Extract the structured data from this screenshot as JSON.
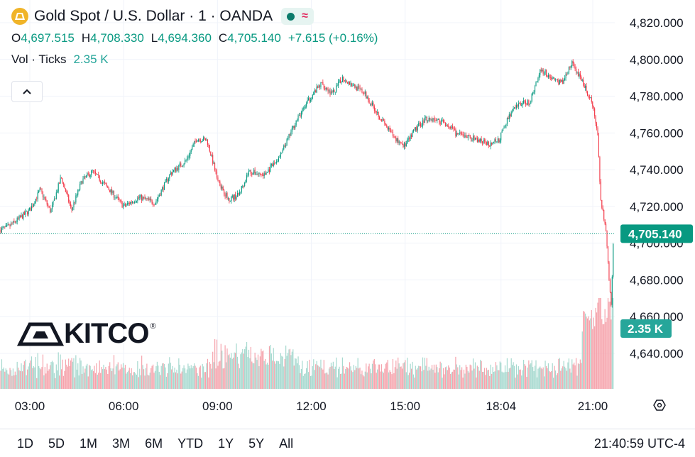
{
  "header": {
    "title": "Gold Spot / U.S. Dollar · 1 · OANDA",
    "status_wave": "≈",
    "ohlc": {
      "o_label": "O",
      "o": "4,697.515",
      "h_label": "H",
      "h": "4,708.330",
      "l_label": "L",
      "l": "4,694.360",
      "c_label": "C",
      "c": "4,705.140",
      "change": "+7.615 (+0.16%)"
    },
    "volume": {
      "label": "Vol · Ticks",
      "value": "2.35 K"
    }
  },
  "price_labels": {
    "last": "4,705.140",
    "volume_last": "2.35 K"
  },
  "ranges": [
    "1D",
    "5D",
    "1M",
    "3M",
    "6M",
    "YTD",
    "1Y",
    "5Y",
    "All"
  ],
  "clock": "21:40:59 UTC-4",
  "watermark": {
    "text": "KITCO",
    "reg": "®"
  },
  "colors": {
    "up": "#089981",
    "down": "#f23645",
    "vol_up": "#a6d9cf",
    "vol_down": "#f5a3ac",
    "last_price": "#089981",
    "text": "#131722",
    "grid": "#f0f3fa"
  },
  "chart_data": {
    "type": "candlestick",
    "symbol": "Gold Spot / U.S. Dollar",
    "interval": "1",
    "exchange": "OANDA",
    "y_axis_ticks": [
      "4,640.000",
      "4,660.000",
      "4,680.000",
      "4,700.000",
      "4,720.000",
      "4,740.000",
      "4,760.000",
      "4,780.000",
      "4,800.000",
      "4,820.000"
    ],
    "x_axis_ticks": [
      "03:00",
      "06:00",
      "09:00",
      "12:00",
      "15:00",
      "18:04",
      "21:00"
    ],
    "ylim": [
      4628,
      4828
    ],
    "last_price": 4705.14,
    "price_path": [
      {
        "t": "01:40",
        "p": 4690
      },
      {
        "t": "02:00",
        "p": 4707
      },
      {
        "t": "02:20",
        "p": 4709
      },
      {
        "t": "03:00",
        "p": 4718
      },
      {
        "t": "03:20",
        "p": 4729
      },
      {
        "t": "03:40",
        "p": 4717
      },
      {
        "t": "04:00",
        "p": 4736
      },
      {
        "t": "04:20",
        "p": 4718
      },
      {
        "t": "04:40",
        "p": 4734
      },
      {
        "t": "05:00",
        "p": 4739
      },
      {
        "t": "05:30",
        "p": 4730
      },
      {
        "t": "06:00",
        "p": 4720
      },
      {
        "t": "06:30",
        "p": 4725
      },
      {
        "t": "07:00",
        "p": 4722
      },
      {
        "t": "07:30",
        "p": 4738
      },
      {
        "t": "08:00",
        "p": 4745
      },
      {
        "t": "08:20",
        "p": 4757
      },
      {
        "t": "08:40",
        "p": 4756
      },
      {
        "t": "09:00",
        "p": 4735
      },
      {
        "t": "09:20",
        "p": 4724
      },
      {
        "t": "09:40",
        "p": 4726
      },
      {
        "t": "10:00",
        "p": 4739
      },
      {
        "t": "10:30",
        "p": 4737
      },
      {
        "t": "11:00",
        "p": 4747
      },
      {
        "t": "11:30",
        "p": 4766
      },
      {
        "t": "12:00",
        "p": 4780
      },
      {
        "t": "12:20",
        "p": 4787
      },
      {
        "t": "12:40",
        "p": 4781
      },
      {
        "t": "13:00",
        "p": 4790
      },
      {
        "t": "13:20",
        "p": 4786
      },
      {
        "t": "13:40",
        "p": 4782
      },
      {
        "t": "14:00",
        "p": 4774
      },
      {
        "t": "14:20",
        "p": 4765
      },
      {
        "t": "14:40",
        "p": 4757
      },
      {
        "t": "15:00",
        "p": 4753
      },
      {
        "t": "15:20",
        "p": 4762
      },
      {
        "t": "15:40",
        "p": 4768
      },
      {
        "t": "16:00",
        "p": 4767
      },
      {
        "t": "16:20",
        "p": 4765
      },
      {
        "t": "16:40",
        "p": 4759
      },
      {
        "t": "17:00",
        "p": 4758
      },
      {
        "t": "17:20",
        "p": 4756
      },
      {
        "t": "17:40",
        "p": 4754
      },
      {
        "t": "18:00",
        "p": 4756
      },
      {
        "t": "18:20",
        "p": 4770
      },
      {
        "t": "18:40",
        "p": 4776
      },
      {
        "t": "19:00",
        "p": 4777
      },
      {
        "t": "19:20",
        "p": 4795
      },
      {
        "t": "19:40",
        "p": 4790
      },
      {
        "t": "20:00",
        "p": 4787
      },
      {
        "t": "20:20",
        "p": 4798
      },
      {
        "t": "20:40",
        "p": 4788
      },
      {
        "t": "21:00",
        "p": 4775
      },
      {
        "t": "21:10",
        "p": 4757
      },
      {
        "t": "21:15",
        "p": 4725
      },
      {
        "t": "21:25",
        "p": 4708
      },
      {
        "t": "21:30",
        "p": 4685
      },
      {
        "t": "21:35",
        "p": 4665
      },
      {
        "t": "21:38",
        "p": 4690
      },
      {
        "t": "21:40",
        "p": 4705
      }
    ]
  }
}
